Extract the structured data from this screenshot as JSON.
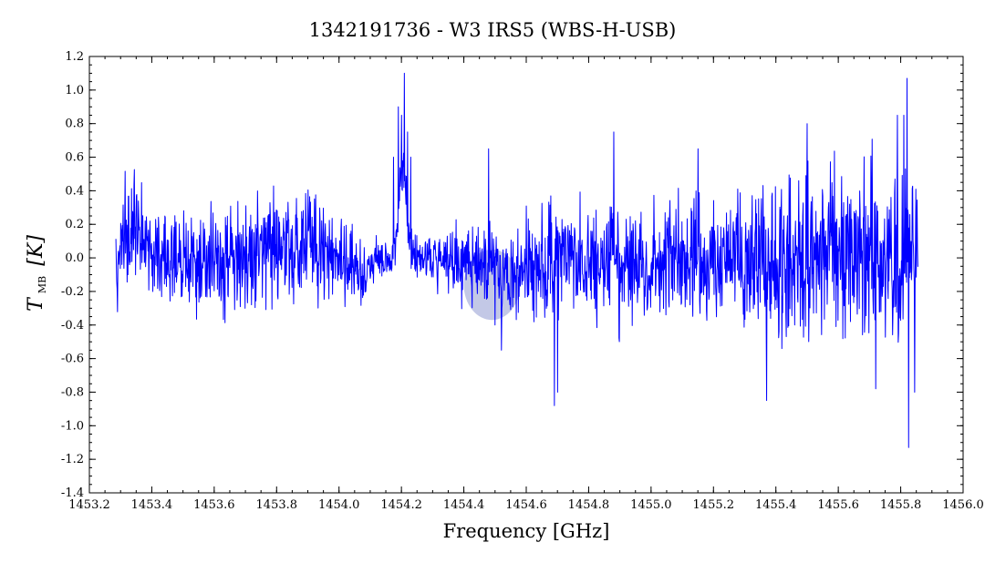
{
  "chart_data": {
    "type": "line",
    "title": "1342191736 - W3 IRS5 (WBS-H-USB)",
    "xlabel": "Frequency [GHz]",
    "ylabel": {
      "symbol": "T",
      "subscript": "MB",
      "unit": "[K]"
    },
    "xlim": [
      1453.2,
      1456.0
    ],
    "ylim": [
      -1.4,
      1.2
    ],
    "x_ticks": [
      "1453.2",
      "1453.4",
      "1453.6",
      "1453.8",
      "1454.0",
      "1454.2",
      "1454.4",
      "1454.6",
      "1454.8",
      "1455.0",
      "1455.2",
      "1455.4",
      "1455.6",
      "1455.8",
      "1456.0"
    ],
    "y_ticks": [
      "-1.4",
      "-1.2",
      "-1.0",
      "-0.8",
      "-0.6",
      "-0.4",
      "-0.2",
      "0.0",
      "0.2",
      "0.4",
      "0.6",
      "0.8",
      "1.0",
      "1.2"
    ],
    "grid": false,
    "series": [
      {
        "color": "#0000ff",
        "x_range": [
          1453.285,
          1455.855
        ],
        "baseline_envelope": [
          {
            "x": 1453.29,
            "lo": -0.45,
            "hi": 0.25
          },
          {
            "x": 1453.32,
            "lo": -0.3,
            "hi": 0.75
          },
          {
            "x": 1453.4,
            "lo": -0.35,
            "hi": 0.4
          },
          {
            "x": 1453.6,
            "lo": -0.5,
            "hi": 0.4
          },
          {
            "x": 1453.9,
            "lo": -0.4,
            "hi": 0.6
          },
          {
            "x": 1454.08,
            "lo": -0.4,
            "hi": 0.25
          },
          {
            "x": 1454.15,
            "lo": -0.2,
            "hi": 0.2
          },
          {
            "x": 1454.4,
            "lo": -0.35,
            "hi": 0.3
          },
          {
            "x": 1454.6,
            "lo": -0.5,
            "hi": 0.4
          },
          {
            "x": 1454.8,
            "lo": -0.55,
            "hi": 0.55
          },
          {
            "x": 1455.0,
            "lo": -0.6,
            "hi": 0.5
          },
          {
            "x": 1455.2,
            "lo": -0.6,
            "hi": 0.55
          },
          {
            "x": 1455.4,
            "lo": -0.7,
            "hi": 0.7
          },
          {
            "x": 1455.6,
            "lo": -0.7,
            "hi": 0.8
          },
          {
            "x": 1455.8,
            "lo": -0.8,
            "hi": 0.8
          }
        ],
        "features": [
          {
            "x": 1454.175,
            "y": 0.6
          },
          {
            "x": 1454.19,
            "y": 0.9
          },
          {
            "x": 1454.2,
            "y": 0.85
          },
          {
            "x": 1454.21,
            "y": 1.1
          },
          {
            "x": 1454.22,
            "y": 0.75
          },
          {
            "x": 1454.23,
            "y": 0.6
          },
          {
            "x": 1454.48,
            "y": 0.65
          },
          {
            "x": 1454.5,
            "y": -0.4
          },
          {
            "x": 1454.52,
            "y": -0.55
          },
          {
            "x": 1454.69,
            "y": -0.88
          },
          {
            "x": 1454.7,
            "y": -0.8
          },
          {
            "x": 1454.88,
            "y": 0.75
          },
          {
            "x": 1455.15,
            "y": 0.65
          },
          {
            "x": 1455.37,
            "y": -0.85
          },
          {
            "x": 1455.5,
            "y": 0.8
          },
          {
            "x": 1455.72,
            "y": -0.78
          },
          {
            "x": 1455.79,
            "y": 0.85
          },
          {
            "x": 1455.81,
            "y": 0.85
          },
          {
            "x": 1455.82,
            "y": 1.07
          },
          {
            "x": 1455.825,
            "y": -1.13
          },
          {
            "x": 1455.845,
            "y": -0.8
          }
        ]
      }
    ],
    "annotations": [
      {
        "shape": "circle",
        "cx": 1454.49,
        "cy": -0.16,
        "rx": 0.09,
        "ry_value": 0.42,
        "color": "#7b84c8",
        "opacity": 0.45
      }
    ]
  }
}
